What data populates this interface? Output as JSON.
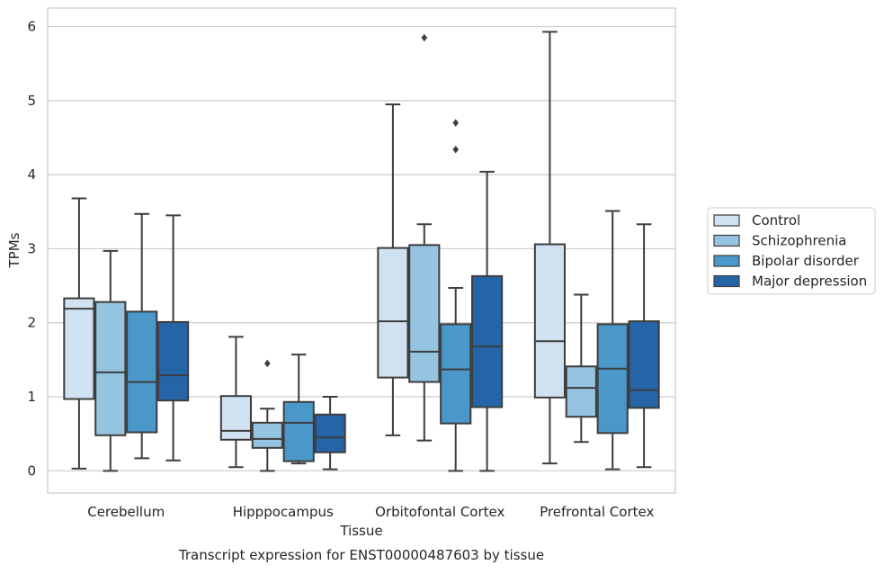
{
  "chart_data": {
    "type": "boxplot",
    "title": "",
    "caption": "Transcript expression for ENST00000487603 by tissue",
    "xlabel": "Tissue",
    "ylabel": "TPMs",
    "ylim": [
      -0.3,
      6.25
    ],
    "yticks": [
      0,
      1,
      2,
      3,
      4,
      5,
      6
    ],
    "grid": "horizontal",
    "legend_position": "right",
    "categories": [
      "Cerebellum",
      "Hipppocampus",
      "Orbitofontal Cortex",
      "Prefrontal Cortex"
    ],
    "series": [
      {
        "name": "Control",
        "color": "#d0e1f2",
        "boxes": [
          {
            "whislo": 0.03,
            "q1": 0.97,
            "med": 2.19,
            "q3": 2.33,
            "whishi": 3.68,
            "fliers": []
          },
          {
            "whislo": 0.05,
            "q1": 0.42,
            "med": 0.54,
            "q3": 1.01,
            "whishi": 1.81,
            "fliers": []
          },
          {
            "whislo": 0.48,
            "q1": 1.26,
            "med": 2.02,
            "q3": 3.01,
            "whishi": 4.95,
            "fliers": []
          },
          {
            "whislo": 0.1,
            "q1": 0.99,
            "med": 1.75,
            "q3": 3.06,
            "whishi": 5.93,
            "fliers": []
          }
        ]
      },
      {
        "name": "Schizophrenia",
        "color": "#94c4df",
        "boxes": [
          {
            "whislo": 0.0,
            "q1": 0.48,
            "med": 1.33,
            "q3": 2.28,
            "whishi": 2.97,
            "fliers": []
          },
          {
            "whislo": 0.0,
            "q1": 0.31,
            "med": 0.43,
            "q3": 0.65,
            "whishi": 0.84,
            "fliers": [
              1.45
            ]
          },
          {
            "whislo": 0.41,
            "q1": 1.2,
            "med": 1.61,
            "q3": 3.05,
            "whishi": 3.33,
            "fliers": [
              5.85
            ]
          },
          {
            "whislo": 0.39,
            "q1": 0.73,
            "med": 1.12,
            "q3": 1.41,
            "whishi": 2.38,
            "fliers": []
          }
        ]
      },
      {
        "name": "Bipolar disorder",
        "color": "#4a98c9",
        "boxes": [
          {
            "whislo": 0.17,
            "q1": 0.52,
            "med": 1.2,
            "q3": 2.15,
            "whishi": 3.47,
            "fliers": []
          },
          {
            "whislo": 0.1,
            "q1": 0.13,
            "med": 0.65,
            "q3": 0.93,
            "whishi": 1.57,
            "fliers": []
          },
          {
            "whislo": 0.0,
            "q1": 0.64,
            "med": 1.37,
            "q3": 1.98,
            "whishi": 2.47,
            "fliers": [
              4.7,
              4.34
            ]
          },
          {
            "whislo": 0.02,
            "q1": 0.51,
            "med": 1.38,
            "q3": 1.98,
            "whishi": 3.51,
            "fliers": []
          }
        ]
      },
      {
        "name": "Major depression",
        "color": "#2464a7",
        "boxes": [
          {
            "whislo": 0.14,
            "q1": 0.95,
            "med": 1.29,
            "q3": 2.01,
            "whishi": 3.45,
            "fliers": []
          },
          {
            "whislo": 0.02,
            "q1": 0.25,
            "med": 0.45,
            "q3": 0.76,
            "whishi": 1.0,
            "fliers": []
          },
          {
            "whislo": 0.0,
            "q1": 0.86,
            "med": 1.68,
            "q3": 2.63,
            "whishi": 4.04,
            "fliers": []
          },
          {
            "whislo": 0.05,
            "q1": 0.85,
            "med": 1.09,
            "q3": 2.02,
            "whishi": 3.33,
            "fliers": []
          }
        ]
      }
    ]
  }
}
